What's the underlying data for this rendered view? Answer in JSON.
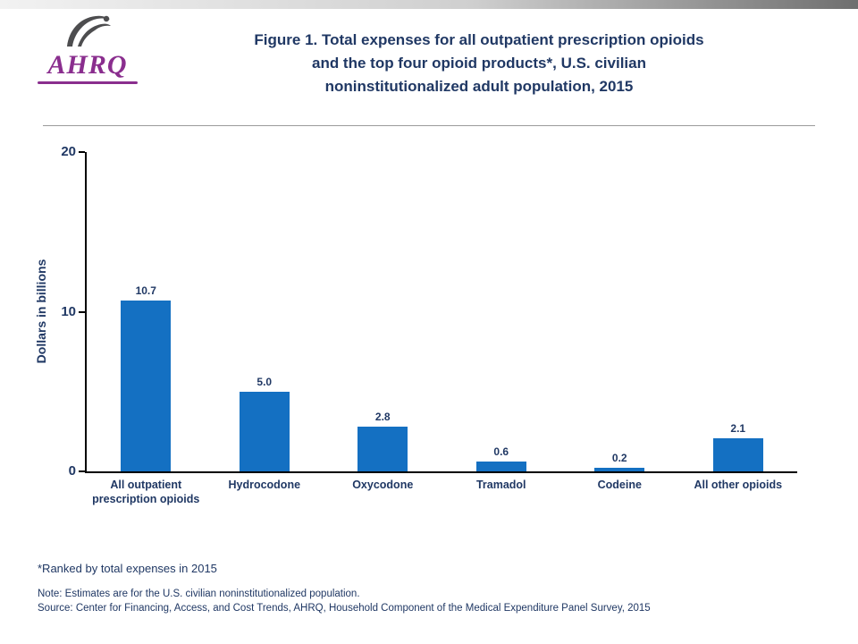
{
  "header": {
    "title_lines": [
      "Figure 1. Total expenses for all outpatient prescription opioids",
      "and the top four opioid products*, U.S. civilian",
      "noninstitutionalized adult population, 2015"
    ],
    "logo_text": "AHRQ"
  },
  "chart_data": {
    "type": "bar",
    "title": "Figure 1. Total expenses for all outpatient prescription opioids and the top four opioid products*, U.S. civilian noninstitutionalized adult population, 2015",
    "categories": [
      "All outpatient prescription opioids",
      "Hydrocodone",
      "Oxycodone",
      "Tramadol",
      "Codeine",
      "All other opioids"
    ],
    "values": [
      10.7,
      5.0,
      2.8,
      0.6,
      0.2,
      2.1
    ],
    "value_labels": [
      "10.7",
      "5.0",
      "2.8",
      "0.6",
      "0.2",
      "2.1"
    ],
    "xlabel": "",
    "ylabel": "Dollars in billions",
    "ylim": [
      0,
      20
    ],
    "yticks": [
      0,
      10,
      20
    ],
    "grid": false,
    "legend": "none"
  },
  "footnotes": {
    "ranked": "*Ranked by total expenses in 2015",
    "note": "Note: Estimates are for the U.S. civilian noninstitutionalized population.",
    "source": "Source: Center for Financing, Access, and Cost Trends, AHRQ, Household Component of the Medical Expenditure Panel Survey, 2015"
  },
  "colors": {
    "bar": "#1470C2",
    "text": "#203864",
    "logo": "#8A2E8E"
  }
}
